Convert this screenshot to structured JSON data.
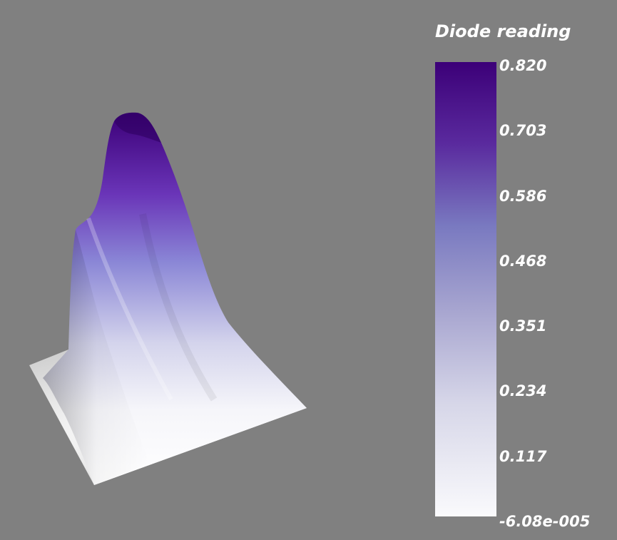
{
  "chart_data": {
    "type": "surface",
    "colorbar": {
      "title": "Diode reading",
      "min": -6.08e-05,
      "max": 0.82,
      "tick_labels": [
        "0.820",
        "0.703",
        "0.586",
        "0.468",
        "0.351",
        "0.234",
        "0.117",
        "-6.08e-005"
      ],
      "colors": {
        "high": "#3c0078",
        "mid": "#7979c0",
        "low": "#ffffff"
      }
    },
    "background": "#808080"
  }
}
